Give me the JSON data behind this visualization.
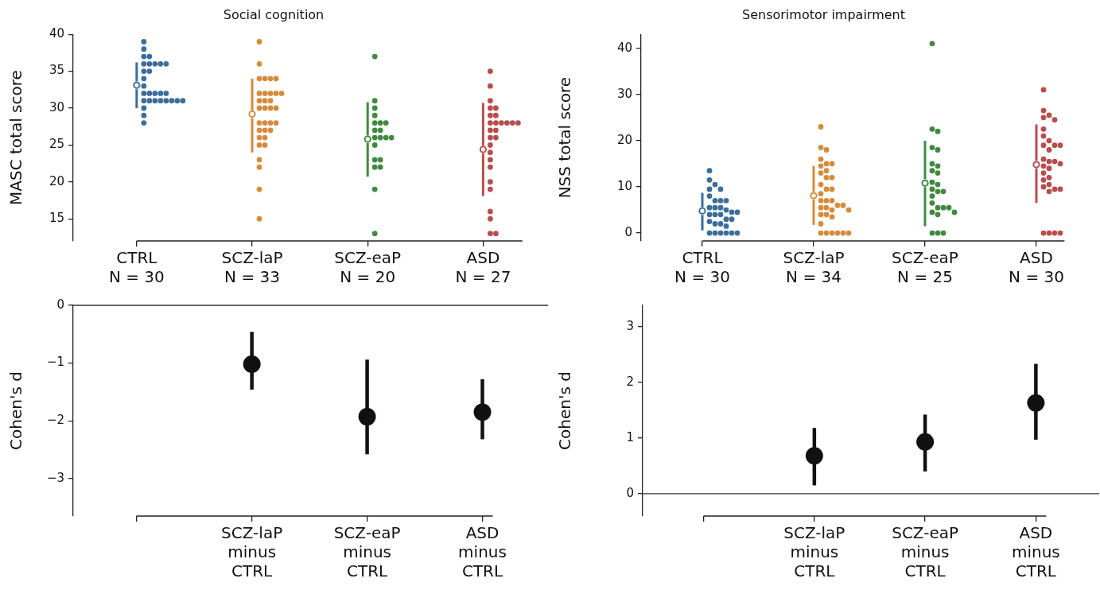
{
  "chart_data": [
    {
      "type": "scatter",
      "title": "Social cognition",
      "ylabel": "MASC total score",
      "categories": [
        "CTRL\nN = 30",
        "SCZ-laP\nN = 33",
        "SCZ-eaP\nN = 20",
        "ASD\nN = 27"
      ],
      "ylim": [
        12,
        40
      ],
      "yticks": [
        15,
        20,
        25,
        30,
        35,
        40
      ],
      "series": [
        {
          "color": "#3b6e9a",
          "marker": "circle",
          "x": [
            "CTRL\nN = 30",
            "CTRL\nN = 30",
            "CTRL\nN = 30",
            "CTRL\nN = 30",
            "CTRL\nN = 30",
            "CTRL\nN = 30",
            "CTRL\nN = 30",
            "CTRL\nN = 30",
            "CTRL\nN = 30",
            "CTRL\nN = 30",
            "CTRL\nN = 30",
            "CTRL\nN = 30",
            "CTRL\nN = 30",
            "CTRL\nN = 30",
            "CTRL\nN = 30",
            "CTRL\nN = 30",
            "CTRL\nN = 30",
            "CTRL\nN = 30",
            "CTRL\nN = 30",
            "CTRL\nN = 30",
            "CTRL\nN = 30",
            "CTRL\nN = 30",
            "CTRL\nN = 30",
            "CTRL\nN = 30",
            "CTRL\nN = 30",
            "CTRL\nN = 30",
            "CTRL\nN = 30",
            "CTRL\nN = 30",
            "CTRL\nN = 30"
          ],
          "values": [
            39,
            38,
            37,
            37,
            36,
            36,
            36,
            36,
            36,
            35,
            35,
            34,
            33,
            32,
            32,
            32,
            32,
            32,
            31,
            31,
            31,
            31,
            31,
            31,
            31,
            31,
            30,
            29,
            28
          ]
        },
        {
          "color": "#d58b3c",
          "marker": "circle",
          "x": [
            "SCZ-laP\nN = 33",
            "SCZ-laP\nN = 33",
            "SCZ-laP\nN = 33",
            "SCZ-laP\nN = 33",
            "SCZ-laP\nN = 33",
            "SCZ-laP\nN = 33",
            "SCZ-laP\nN = 33",
            "SCZ-laP\nN = 33",
            "SCZ-laP\nN = 33",
            "SCZ-laP\nN = 33",
            "SCZ-laP\nN = 33",
            "SCZ-laP\nN = 33",
            "SCZ-laP\nN = 33",
            "SCZ-laP\nN = 33",
            "SCZ-laP\nN = 33",
            "SCZ-laP\nN = 33",
            "SCZ-laP\nN = 33",
            "SCZ-laP\nN = 33",
            "SCZ-laP\nN = 33",
            "SCZ-laP\nN = 33",
            "SCZ-laP\nN = 33",
            "SCZ-laP\nN = 33",
            "SCZ-laP\nN = 33",
            "SCZ-laP\nN = 33",
            "SCZ-laP\nN = 33",
            "SCZ-laP\nN = 33",
            "SCZ-laP\nN = 33",
            "SCZ-laP\nN = 33",
            "SCZ-laP\nN = 33",
            "SCZ-laP\nN = 33",
            "SCZ-laP\nN = 33",
            "SCZ-laP\nN = 33",
            "SCZ-laP\nN = 33"
          ],
          "values": [
            39,
            36,
            34,
            34,
            34,
            34,
            32,
            32,
            32,
            32,
            32,
            31,
            31,
            31,
            30,
            30,
            30,
            30,
            28,
            28,
            28,
            28,
            27,
            27,
            27,
            26,
            26,
            25,
            25,
            23,
            22,
            19,
            15
          ]
        },
        {
          "color": "#3f8a3e",
          "marker": "circle",
          "x": [
            "SCZ-eaP\nN = 20",
            "SCZ-eaP\nN = 20",
            "SCZ-eaP\nN = 20",
            "SCZ-eaP\nN = 20",
            "SCZ-eaP\nN = 20",
            "SCZ-eaP\nN = 20",
            "SCZ-eaP\nN = 20",
            "SCZ-eaP\nN = 20",
            "SCZ-eaP\nN = 20",
            "SCZ-eaP\nN = 20",
            "SCZ-eaP\nN = 20",
            "SCZ-eaP\nN = 20",
            "SCZ-eaP\nN = 20",
            "SCZ-eaP\nN = 20",
            "SCZ-eaP\nN = 20",
            "SCZ-eaP\nN = 20",
            "SCZ-eaP\nN = 20",
            "SCZ-eaP\nN = 20",
            "SCZ-eaP\nN = 20",
            "SCZ-eaP\nN = 20"
          ],
          "values": [
            37,
            31,
            30,
            29,
            28,
            28,
            28,
            27,
            27,
            26,
            26,
            26,
            26,
            25,
            23,
            23,
            22,
            22,
            19,
            13
          ]
        },
        {
          "color": "#b94c4c",
          "marker": "circle",
          "x": [
            "ASD\nN = 27",
            "ASD\nN = 27",
            "ASD\nN = 27",
            "ASD\nN = 27",
            "ASD\nN = 27",
            "ASD\nN = 27",
            "ASD\nN = 27",
            "ASD\nN = 27",
            "ASD\nN = 27",
            "ASD\nN = 27",
            "ASD\nN = 27",
            "ASD\nN = 27",
            "ASD\nN = 27",
            "ASD\nN = 27",
            "ASD\nN = 27",
            "ASD\nN = 27",
            "ASD\nN = 27",
            "ASD\nN = 27",
            "ASD\nN = 27",
            "ASD\nN = 27",
            "ASD\nN = 27",
            "ASD\nN = 27",
            "ASD\nN = 27",
            "ASD\nN = 27",
            "ASD\nN = 27",
            "ASD\nN = 27",
            "ASD\nN = 27"
          ],
          "values": [
            35,
            33,
            31,
            30,
            30,
            29,
            29,
            28,
            28,
            28,
            28,
            28,
            28,
            27,
            27,
            26,
            26,
            25,
            24,
            23,
            22,
            20,
            19,
            16,
            15,
            13,
            13
          ]
        },
        {
          "marker": "circle",
          "colors": [
            "#3b6e9a",
            "#d58b3c",
            "#3f8a3e",
            "#b94c4c"
          ],
          "x": [
            "CTRL\nN = 30",
            "SCZ-laP\nN = 33",
            "SCZ-eaP\nN = 20",
            "ASD\nN = 27"
          ],
          "values": [
            33.1,
            29.2,
            25.8,
            24.4
          ],
          "errors": [
            [
              30,
              36.2
            ],
            [
              24,
              34
            ],
            [
              20.7,
              30.8
            ],
            [
              18.1,
              30.7
            ]
          ]
        }
      ]
    },
    {
      "type": "scatter",
      "title": "Sensorimotor impairment",
      "ylabel": "NSS total score",
      "categories": [
        "CTRL\nN = 30",
        "SCZ-laP\nN = 34",
        "SCZ-eaP\nN = 25",
        "ASD\nN = 30"
      ],
      "ylim": [
        -1.7,
        43
      ],
      "yticks": [
        0,
        10,
        20,
        30,
        40
      ],
      "series": [
        {
          "color": "#3b6e9a",
          "marker": "circle",
          "x": [
            "CTRL\nN = 30",
            "CTRL\nN = 30",
            "CTRL\nN = 30",
            "CTRL\nN = 30",
            "CTRL\nN = 30",
            "CTRL\nN = 30",
            "CTRL\nN = 30",
            "CTRL\nN = 30",
            "CTRL\nN = 30",
            "CTRL\nN = 30",
            "CTRL\nN = 30",
            "CTRL\nN = 30",
            "CTRL\nN = 30",
            "CTRL\nN = 30",
            "CTRL\nN = 30",
            "CTRL\nN = 30",
            "CTRL\nN = 30",
            "CTRL\nN = 30",
            "CTRL\nN = 30",
            "CTRL\nN = 30",
            "CTRL\nN = 30",
            "CTRL\nN = 30",
            "CTRL\nN = 30",
            "CTRL\nN = 30",
            "CTRL\nN = 30",
            "CTRL\nN = 30",
            "CTRL\nN = 30",
            "CTRL\nN = 30",
            "CTRL\nN = 30",
            "CTRL\nN = 30"
          ],
          "values": [
            13.5,
            11.5,
            10.5,
            9.5,
            9.5,
            8,
            7,
            7,
            7,
            5.5,
            5.5,
            5.5,
            5,
            4.5,
            4.5,
            4,
            4,
            4,
            3,
            3,
            2.5,
            2,
            2,
            1.5,
            0,
            0,
            0,
            0,
            0,
            0
          ]
        },
        {
          "color": "#d58b3c",
          "marker": "circle",
          "x": [
            "SCZ-laP\nN = 34",
            "SCZ-laP\nN = 34",
            "SCZ-laP\nN = 34",
            "SCZ-laP\nN = 34",
            "SCZ-laP\nN = 34",
            "SCZ-laP\nN = 34",
            "SCZ-laP\nN = 34",
            "SCZ-laP\nN = 34",
            "SCZ-laP\nN = 34",
            "SCZ-laP\nN = 34",
            "SCZ-laP\nN = 34",
            "SCZ-laP\nN = 34",
            "SCZ-laP\nN = 34",
            "SCZ-laP\nN = 34",
            "SCZ-laP\nN = 34",
            "SCZ-laP\nN = 34",
            "SCZ-laP\nN = 34",
            "SCZ-laP\nN = 34",
            "SCZ-laP\nN = 34",
            "SCZ-laP\nN = 34",
            "SCZ-laP\nN = 34",
            "SCZ-laP\nN = 34",
            "SCZ-laP\nN = 34",
            "SCZ-laP\nN = 34",
            "SCZ-laP\nN = 34",
            "SCZ-laP\nN = 34",
            "SCZ-laP\nN = 34",
            "SCZ-laP\nN = 34",
            "SCZ-laP\nN = 34",
            "SCZ-laP\nN = 34",
            "SCZ-laP\nN = 34",
            "SCZ-laP\nN = 34",
            "SCZ-laP\nN = 34",
            "SCZ-laP\nN = 34"
          ],
          "values": [
            23,
            18.5,
            18,
            16,
            15,
            15,
            14.5,
            13.5,
            13,
            12,
            12,
            10.5,
            9.5,
            9.5,
            8.5,
            7,
            7,
            7,
            6,
            6,
            5.5,
            5.5,
            5,
            5,
            4,
            4,
            3.5,
            2,
            0,
            0,
            0,
            0,
            0,
            0
          ]
        },
        {
          "color": "#3f8a3e",
          "marker": "circle",
          "x": [
            "SCZ-eaP\nN = 25",
            "SCZ-eaP\nN = 25",
            "SCZ-eaP\nN = 25",
            "SCZ-eaP\nN = 25",
            "SCZ-eaP\nN = 25",
            "SCZ-eaP\nN = 25",
            "SCZ-eaP\nN = 25",
            "SCZ-eaP\nN = 25",
            "SCZ-eaP\nN = 25",
            "SCZ-eaP\nN = 25",
            "SCZ-eaP\nN = 25",
            "SCZ-eaP\nN = 25",
            "SCZ-eaP\nN = 25",
            "SCZ-eaP\nN = 25",
            "SCZ-eaP\nN = 25",
            "SCZ-eaP\nN = 25",
            "SCZ-eaP\nN = 25",
            "SCZ-eaP\nN = 25",
            "SCZ-eaP\nN = 25",
            "SCZ-eaP\nN = 25",
            "SCZ-eaP\nN = 25",
            "SCZ-eaP\nN = 25",
            "SCZ-eaP\nN = 25",
            "SCZ-eaP\nN = 25",
            "SCZ-eaP\nN = 25"
          ],
          "values": [
            41,
            22.5,
            22,
            18.5,
            18,
            15,
            14.5,
            13.5,
            13,
            11,
            10.5,
            9.5,
            9,
            9,
            8,
            6.5,
            5.5,
            5.5,
            5.5,
            4.5,
            4.5,
            4,
            0,
            0,
            0
          ]
        },
        {
          "color": "#b94c4c",
          "marker": "circle",
          "x": [
            "ASD\nN = 30",
            "ASD\nN = 30",
            "ASD\nN = 30",
            "ASD\nN = 30",
            "ASD\nN = 30",
            "ASD\nN = 30",
            "ASD\nN = 30",
            "ASD\nN = 30",
            "ASD\nN = 30",
            "ASD\nN = 30",
            "ASD\nN = 30",
            "ASD\nN = 30",
            "ASD\nN = 30",
            "ASD\nN = 30",
            "ASD\nN = 30",
            "ASD\nN = 30",
            "ASD\nN = 30",
            "ASD\nN = 30",
            "ASD\nN = 30",
            "ASD\nN = 30",
            "ASD\nN = 30",
            "ASD\nN = 30",
            "ASD\nN = 30",
            "ASD\nN = 30",
            "ASD\nN = 30",
            "ASD\nN = 30",
            "ASD\nN = 30",
            "ASD\nN = 30",
            "ASD\nN = 30",
            "ASD\nN = 30"
          ],
          "values": [
            31,
            26.5,
            25.5,
            25,
            24.5,
            22.5,
            21,
            20,
            19,
            19,
            19,
            18,
            16,
            15.5,
            15.5,
            15,
            14.5,
            14,
            13,
            12,
            11.5,
            10.5,
            10,
            9.5,
            9.5,
            9,
            0,
            0,
            0,
            0
          ]
        },
        {
          "marker": "circle",
          "colors": [
            "#3b6e9a",
            "#d58b3c",
            "#3f8a3e",
            "#b94c4c"
          ],
          "x": [
            "CTRL\nN = 30",
            "SCZ-laP\nN = 34",
            "SCZ-eaP\nN = 25",
            "ASD\nN = 30"
          ],
          "values": [
            4.8,
            8.1,
            10.8,
            14.8
          ],
          "errors": [
            [
              0.6,
              8.7
            ],
            [
              1.8,
              14.5
            ],
            [
              1.5,
              20
            ],
            [
              6.5,
              23.5
            ]
          ]
        }
      ]
    },
    {
      "type": "scatter",
      "ylabel": "Cohen's d",
      "categories": [
        null,
        "SCZ-laP\nminus\nCTRL",
        "SCZ-eaP\nminus\nCTRL",
        "ASD\nminus\nCTRL"
      ],
      "ylim": [
        -3.65,
        0
      ],
      "yticks": [
        {
          "value": 0,
          "label": "0"
        },
        {
          "value": -1,
          "label": "−1"
        },
        {
          "value": -2,
          "label": "−2"
        },
        {
          "value": -3,
          "label": "−3"
        }
      ],
      "marker": "circle",
      "ref_lines": [
        {
          "axis": "y",
          "value": 0,
          "color": "#333333"
        }
      ],
      "series": [
        {
          "color": "#111111",
          "x": [
            "SCZ-laP\nminus\nCTRL",
            "SCZ-eaP\nminus\nCTRL",
            "ASD\nminus\nCTRL"
          ],
          "values": [
            -1.02,
            -1.93,
            -1.85
          ],
          "errors": [
            [
              -1.46,
              -0.46
            ],
            [
              -2.58,
              -0.94
            ],
            [
              -2.32,
              -1.28
            ]
          ]
        }
      ]
    },
    {
      "type": "scatter",
      "ylabel": "Cohen's d",
      "categories": [
        null,
        "SCZ-laP\nminus\nCTRL",
        "SCZ-eaP\nminus\nCTRL",
        "ASD\nminus\nCTRL"
      ],
      "ylim": [
        -0.4,
        3.38
      ],
      "yticks": [
        0,
        1,
        2,
        3
      ],
      "marker": "circle",
      "ref_lines": [
        {
          "axis": "y",
          "value": 0,
          "color": "#333333"
        }
      ],
      "series": [
        {
          "color": "#111111",
          "x": [
            "SCZ-laP\nminus\nCTRL",
            "SCZ-eaP\nminus\nCTRL",
            "ASD\nminus\nCTRL"
          ],
          "values": [
            0.68,
            0.93,
            1.63
          ],
          "errors": [
            [
              0.15,
              1.18
            ],
            [
              0.4,
              1.42
            ],
            [
              0.97,
              2.33
            ]
          ]
        }
      ]
    }
  ]
}
